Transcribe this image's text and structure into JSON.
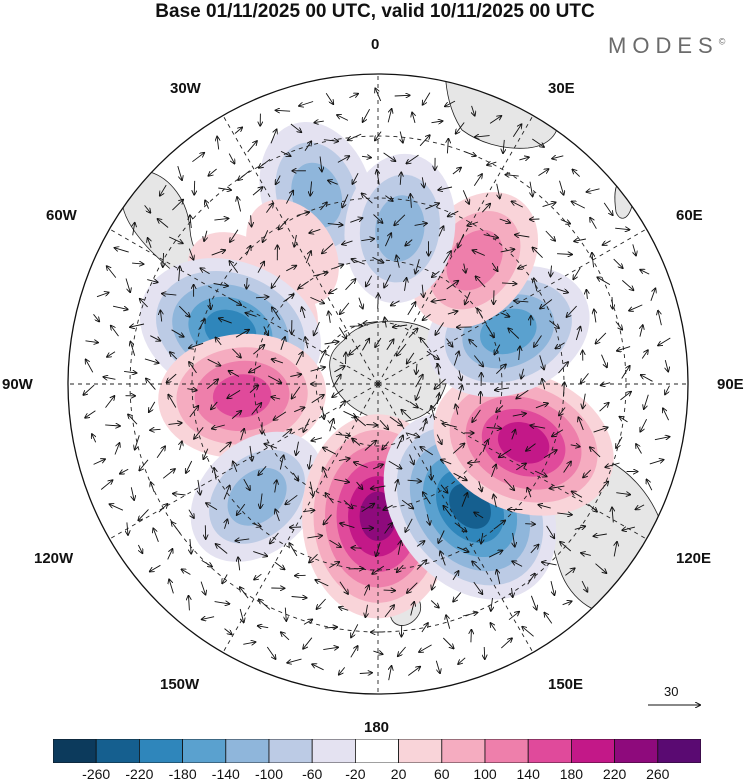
{
  "title": "Base 01/11/2025 00 UTC, valid 10/11/2025 00 UTC",
  "brand": "MODES",
  "brand_mark": "©",
  "longitude_labels": {
    "top": "0",
    "top_left": "30W",
    "top_right": "30E",
    "upper_left": "60W",
    "upper_right": "60E",
    "left": "90W",
    "right": "90E",
    "lower_left": "120W",
    "lower_right": "120E",
    "bottom_left": "150W",
    "bottom_right": "150E",
    "bottom": "180"
  },
  "reference_vector": "30",
  "colorbar": {
    "colors": [
      "#0c3a5c",
      "#155f8f",
      "#2f86bb",
      "#5aa1cf",
      "#8fb6db",
      "#bccbe5",
      "#e4e2f1",
      "#ffffff",
      "#f9d4d9",
      "#f5acc0",
      "#ee7fab",
      "#e04a9b",
      "#c31888",
      "#8e0a7c",
      "#5a0a72"
    ],
    "ticks": [
      "-260",
      "-220",
      "-180",
      "-140",
      "-100",
      "-60",
      "-20",
      "20",
      "60",
      "100",
      "140",
      "180",
      "220",
      "260"
    ]
  },
  "anomalies": [
    {
      "lat": -42,
      "lon": -18,
      "sign": -1,
      "level": 3
    },
    {
      "lat": -52,
      "lon": -33,
      "sign": 1,
      "level": 1
    },
    {
      "lat": -48,
      "lon": -53,
      "sign": 1,
      "level": 1
    },
    {
      "lat": -55,
      "lon": -57,
      "sign": 1,
      "level": 2
    },
    {
      "lat": -52,
      "lon": -70,
      "sign": -1,
      "level": 5
    },
    {
      "lat": -57,
      "lon": -95,
      "sign": 1,
      "level": 4
    },
    {
      "lat": -50,
      "lon": -133,
      "sign": -1,
      "level": 3
    },
    {
      "lat": -58,
      "lon": 180,
      "sign": 1,
      "level": 6
    },
    {
      "lat": -53,
      "lon": 143,
      "sign": -1,
      "level": 6
    },
    {
      "lat": -52,
      "lon": 112,
      "sign": 1,
      "level": 5
    },
    {
      "lat": -56,
      "lon": 68,
      "sign": -1,
      "level": 4
    },
    {
      "lat": -52,
      "lon": 38,
      "sign": 1,
      "level": 3
    },
    {
      "lat": -52,
      "lon": 8,
      "sign": -1,
      "level": 3
    }
  ]
}
